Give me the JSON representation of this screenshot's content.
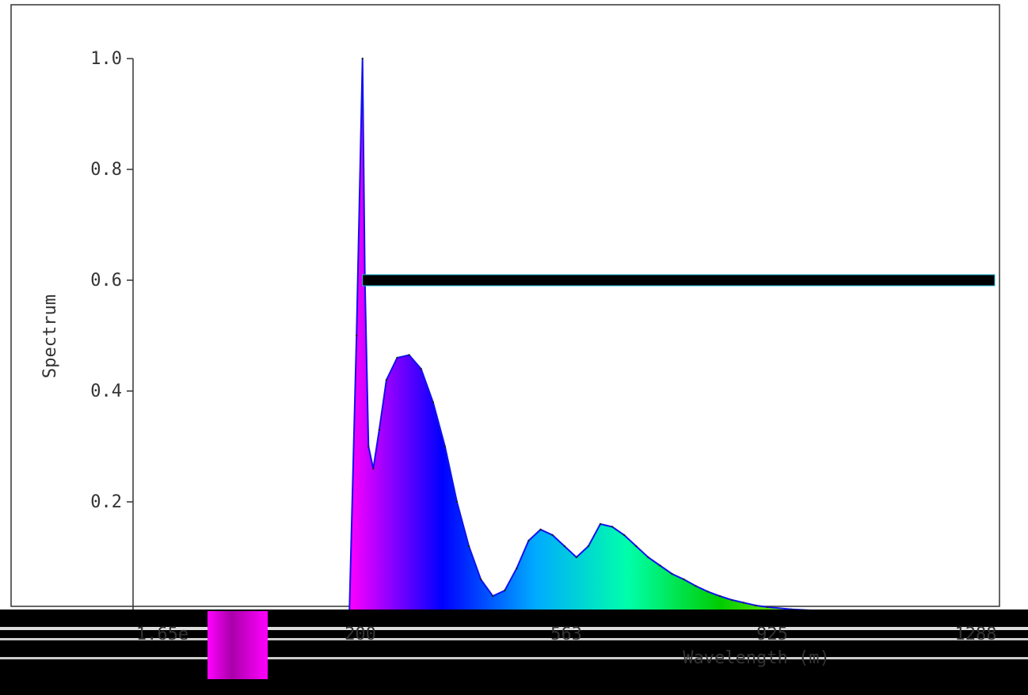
{
  "chart_data": {
    "type": "area",
    "title": "",
    "xlabel": "Wavelength (m)",
    "ylabel": "Spectrum",
    "x_tick_labels": [
      "1.65e",
      "200",
      "563",
      "925",
      "1288"
    ],
    "y_ticks": [
      0.0,
      0.2,
      0.4,
      0.6,
      0.8,
      1.0
    ],
    "y_tick_labels": [
      "0.0",
      "0.2",
      "0.4",
      "0.6",
      "0.8",
      "1.0"
    ],
    "xlim": [
      -162,
      1288
    ],
    "ylim": [
      0,
      1.0
    ],
    "grid": false,
    "legend": "none",
    "series": [
      {
        "x": [
          200,
          212,
          222,
          226,
          232,
          240,
          250,
          262,
          280,
          300,
          320,
          340,
          360,
          380,
          400,
          420,
          440,
          460,
          480,
          500,
          520,
          540,
          560,
          580,
          600,
          620,
          640,
          660,
          680,
          700,
          720,
          740,
          760,
          780,
          800,
          820,
          840,
          860,
          880,
          900,
          940,
          980,
          1020,
          1060,
          1100,
          1150,
          1200,
          1288
        ],
        "values": [
          0.0,
          0.5,
          1.0,
          0.6,
          0.3,
          0.26,
          0.33,
          0.42,
          0.46,
          0.465,
          0.44,
          0.38,
          0.3,
          0.2,
          0.12,
          0.06,
          0.03,
          0.04,
          0.08,
          0.13,
          0.15,
          0.14,
          0.12,
          0.1,
          0.12,
          0.16,
          0.155,
          0.14,
          0.12,
          0.1,
          0.085,
          0.07,
          0.06,
          0.048,
          0.038,
          0.03,
          0.023,
          0.018,
          0.013,
          0.01,
          0.006,
          0.004,
          0.002,
          0.001,
          0.0008,
          0.0005,
          0.0003,
          0.0
        ]
      }
    ],
    "reference_line": {
      "y": 0.6,
      "x_start": 222,
      "x_end": 1288,
      "color": "#000000"
    },
    "palette": [
      "#ff00ff",
      "#0000ff",
      "#00aaff",
      "#00ffaa",
      "#00cc00",
      "#aaff00",
      "#ffff00",
      "#ff0000"
    ]
  }
}
